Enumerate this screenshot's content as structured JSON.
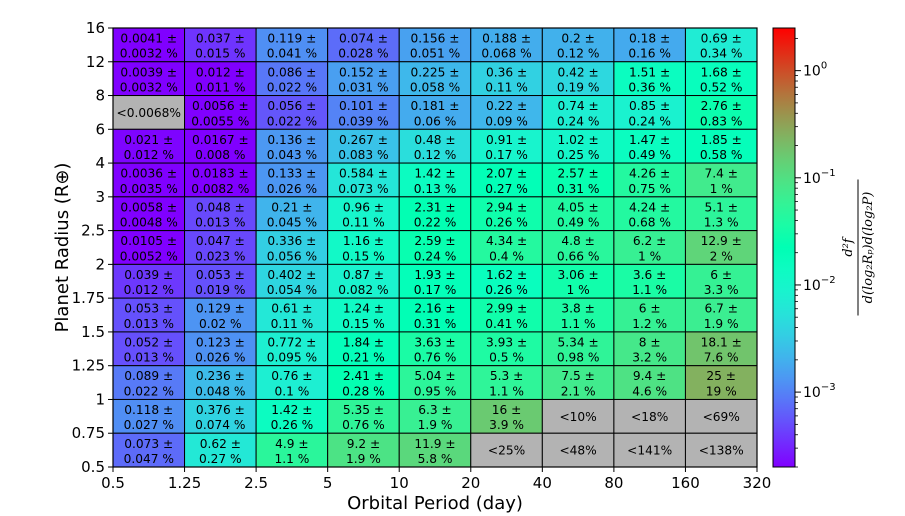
{
  "chart_data": {
    "type": "heatmap",
    "xlabel": "Orbital Period (day)",
    "ylabel": "Planet Radius (R⊕)",
    "x_ticks": [
      "0.5",
      "1.25",
      "2.5",
      "5",
      "10",
      "20",
      "40",
      "80",
      "160",
      "320"
    ],
    "y_ticks": [
      "0.5",
      "0.75",
      "1",
      "1.25",
      "1.5",
      "1.75",
      "2",
      "2.5",
      "3",
      "4",
      "6",
      "8",
      "12",
      "16"
    ],
    "colorbar": {
      "scale": "log",
      "range": [
        0.0002,
        2.5
      ],
      "ticks": [
        {
          "label": "10",
          "exp": "0",
          "value": 1
        },
        {
          "label": "10",
          "exp": "−1",
          "value": 0.1
        },
        {
          "label": "10",
          "exp": "−2",
          "value": 0.01
        },
        {
          "label": "10",
          "exp": "−3",
          "value": 0.001
        }
      ],
      "label": "d²f / d(log₂Rₚ)d(log₂P)",
      "label_num": "d²f",
      "label_den": "d(log₂Rₚ)d(log₂P)",
      "colormap": "rainbow"
    },
    "rows": [
      {
        "y": "12-16",
        "cells": [
          {
            "v": 0.0041,
            "t1": "0.0041 ±",
            "t2": "0.0032 %"
          },
          {
            "v": 0.037,
            "t1": "0.037 ±",
            "t2": "0.015 %"
          },
          {
            "v": 0.119,
            "t1": "0.119 ±",
            "t2": "0.041 %"
          },
          {
            "v": 0.074,
            "t1": "0.074 ±",
            "t2": "0.028 %"
          },
          {
            "v": 0.156,
            "t1": "0.156 ±",
            "t2": "0.051 %"
          },
          {
            "v": 0.188,
            "t1": "0.188 ±",
            "t2": "0.068 %"
          },
          {
            "v": 0.2,
            "t1": "0.2 ±",
            "t2": "0.12 %"
          },
          {
            "v": 0.18,
            "t1": "0.18 ±",
            "t2": "0.16 %"
          },
          {
            "v": 0.69,
            "t1": "0.69 ±",
            "t2": "0.34 %"
          }
        ]
      },
      {
        "y": "8-12",
        "cells": [
          {
            "v": 0.0039,
            "t1": "0.0039 ±",
            "t2": "0.0032 %"
          },
          {
            "v": 0.012,
            "t1": "0.012 ±",
            "t2": "0.011 %"
          },
          {
            "v": 0.086,
            "t1": "0.086 ±",
            "t2": "0.022 %"
          },
          {
            "v": 0.152,
            "t1": "0.152 ±",
            "t2": "0.031 %"
          },
          {
            "v": 0.225,
            "t1": "0.225 ±",
            "t2": "0.058 %"
          },
          {
            "v": 0.36,
            "t1": "0.36 ±",
            "t2": "0.11 %"
          },
          {
            "v": 0.42,
            "t1": "0.42 ±",
            "t2": "0.19 %"
          },
          {
            "v": 1.51,
            "t1": "1.51 ±",
            "t2": "0.36 %"
          },
          {
            "v": 1.68,
            "t1": "1.68 ±",
            "t2": "0.52 %"
          }
        ]
      },
      {
        "y": "6-8",
        "cells": [
          {
            "v": null,
            "t1": "<0.0068%",
            "t2": ""
          },
          {
            "v": 0.0056,
            "t1": "0.0056 ±",
            "t2": "0.0055 %"
          },
          {
            "v": 0.056,
            "t1": "0.056 ±",
            "t2": "0.022 %"
          },
          {
            "v": 0.101,
            "t1": "0.101 ±",
            "t2": "0.039 %"
          },
          {
            "v": 0.181,
            "t1": "0.181 ±",
            "t2": "0.06 %"
          },
          {
            "v": 0.22,
            "t1": "0.22 ±",
            "t2": "0.09 %"
          },
          {
            "v": 0.74,
            "t1": "0.74 ±",
            "t2": "0.24 %"
          },
          {
            "v": 0.85,
            "t1": "0.85 ±",
            "t2": "0.24 %"
          },
          {
            "v": 2.76,
            "t1": "2.76 ±",
            "t2": "0.83 %"
          }
        ]
      },
      {
        "y": "4-6",
        "cells": [
          {
            "v": 0.021,
            "t1": "0.021 ±",
            "t2": "0.012 %"
          },
          {
            "v": 0.0167,
            "t1": "0.0167 ±",
            "t2": "0.008 %"
          },
          {
            "v": 0.136,
            "t1": "0.136 ±",
            "t2": "0.043 %"
          },
          {
            "v": 0.267,
            "t1": "0.267 ±",
            "t2": "0.083 %"
          },
          {
            "v": 0.48,
            "t1": "0.48 ±",
            "t2": "0.12 %"
          },
          {
            "v": 0.91,
            "t1": "0.91 ±",
            "t2": "0.17 %"
          },
          {
            "v": 1.02,
            "t1": "1.02 ±",
            "t2": "0.25 %"
          },
          {
            "v": 1.47,
            "t1": "1.47 ±",
            "t2": "0.49 %"
          },
          {
            "v": 1.85,
            "t1": "1.85 ±",
            "t2": "0.58 %"
          }
        ]
      },
      {
        "y": "3-4",
        "cells": [
          {
            "v": 0.0036,
            "t1": "0.0036 ±",
            "t2": "0.0035 %"
          },
          {
            "v": 0.0183,
            "t1": "0.0183 ±",
            "t2": "0.0082 %"
          },
          {
            "v": 0.133,
            "t1": "0.133 ±",
            "t2": "0.026 %"
          },
          {
            "v": 0.584,
            "t1": "0.584 ±",
            "t2": "0.073 %"
          },
          {
            "v": 1.42,
            "t1": "1.42 ±",
            "t2": "0.13 %"
          },
          {
            "v": 2.07,
            "t1": "2.07 ±",
            "t2": "0.27 %"
          },
          {
            "v": 2.57,
            "t1": "2.57 ±",
            "t2": "0.31 %"
          },
          {
            "v": 4.26,
            "t1": "4.26 ±",
            "t2": "0.75 %"
          },
          {
            "v": 7.4,
            "t1": "7.4 ±",
            "t2": "1 %"
          }
        ]
      },
      {
        "y": "2.5-3",
        "cells": [
          {
            "v": 0.0058,
            "t1": "0.0058 ±",
            "t2": "0.0048 %"
          },
          {
            "v": 0.048,
            "t1": "0.048 ±",
            "t2": "0.013 %"
          },
          {
            "v": 0.21,
            "t1": "0.21 ±",
            "t2": "0.045 %"
          },
          {
            "v": 0.96,
            "t1": "0.96 ±",
            "t2": "0.11 %"
          },
          {
            "v": 2.31,
            "t1": "2.31 ±",
            "t2": "0.22 %"
          },
          {
            "v": 2.94,
            "t1": "2.94 ±",
            "t2": "0.26 %"
          },
          {
            "v": 4.05,
            "t1": "4.05 ±",
            "t2": "0.49 %"
          },
          {
            "v": 4.24,
            "t1": "4.24 ±",
            "t2": "0.68 %"
          },
          {
            "v": 5.1,
            "t1": "5.1 ±",
            "t2": "1.3 %"
          }
        ]
      },
      {
        "y": "2-2.5",
        "cells": [
          {
            "v": 0.0105,
            "t1": "0.0105 ±",
            "t2": "0.0052 %"
          },
          {
            "v": 0.047,
            "t1": "0.047 ±",
            "t2": "0.023 %"
          },
          {
            "v": 0.336,
            "t1": "0.336 ±",
            "t2": "0.056 %"
          },
          {
            "v": 1.16,
            "t1": "1.16 ±",
            "t2": "0.15 %"
          },
          {
            "v": 2.59,
            "t1": "2.59 ±",
            "t2": "0.24 %"
          },
          {
            "v": 4.34,
            "t1": "4.34 ±",
            "t2": "0.4 %"
          },
          {
            "v": 4.8,
            "t1": "4.8 ±",
            "t2": "0.66 %"
          },
          {
            "v": 6.2,
            "t1": "6.2 ±",
            "t2": "1 %"
          },
          {
            "v": 12.9,
            "t1": "12.9 ±",
            "t2": "2 %"
          }
        ]
      },
      {
        "y": "1.75-2",
        "cells": [
          {
            "v": 0.039,
            "t1": "0.039 ±",
            "t2": "0.012 %"
          },
          {
            "v": 0.053,
            "t1": "0.053 ±",
            "t2": "0.019 %"
          },
          {
            "v": 0.402,
            "t1": "0.402 ±",
            "t2": "0.054 %"
          },
          {
            "v": 0.87,
            "t1": "0.87 ±",
            "t2": "0.082 %"
          },
          {
            "v": 1.93,
            "t1": "1.93 ±",
            "t2": "0.17 %"
          },
          {
            "v": 1.62,
            "t1": "1.62 ±",
            "t2": "0.26 %"
          },
          {
            "v": 3.06,
            "t1": "3.06 ±",
            "t2": "1 %"
          },
          {
            "v": 3.6,
            "t1": "3.6 ±",
            "t2": "1.1 %"
          },
          {
            "v": 6,
            "t1": "6 ±",
            "t2": "3.3 %"
          }
        ]
      },
      {
        "y": "1.5-1.75",
        "cells": [
          {
            "v": 0.053,
            "t1": "0.053 ±",
            "t2": "0.013 %"
          },
          {
            "v": 0.129,
            "t1": "0.129 ±",
            "t2": "0.02 %"
          },
          {
            "v": 0.61,
            "t1": "0.61 ±",
            "t2": "0.11 %"
          },
          {
            "v": 1.24,
            "t1": "1.24 ±",
            "t2": "0.15 %"
          },
          {
            "v": 2.16,
            "t1": "2.16 ±",
            "t2": "0.31 %"
          },
          {
            "v": 2.99,
            "t1": "2.99 ±",
            "t2": "0.41 %"
          },
          {
            "v": 3.8,
            "t1": "3.8 ±",
            "t2": "1.1 %"
          },
          {
            "v": 6,
            "t1": "6 ±",
            "t2": "1.2 %"
          },
          {
            "v": 6.7,
            "t1": "6.7 ±",
            "t2": "1.9 %"
          }
        ]
      },
      {
        "y": "1.25-1.5",
        "cells": [
          {
            "v": 0.052,
            "t1": "0.052 ±",
            "t2": "0.013 %"
          },
          {
            "v": 0.123,
            "t1": "0.123 ±",
            "t2": "0.026 %"
          },
          {
            "v": 0.772,
            "t1": "0.772 ±",
            "t2": "0.095 %"
          },
          {
            "v": 1.84,
            "t1": "1.84 ±",
            "t2": "0.21 %"
          },
          {
            "v": 3.63,
            "t1": "3.63 ±",
            "t2": "0.76 %"
          },
          {
            "v": 3.93,
            "t1": "3.93 ±",
            "t2": "0.5 %"
          },
          {
            "v": 5.34,
            "t1": "5.34 ±",
            "t2": "0.98 %"
          },
          {
            "v": 8,
            "t1": "8 ±",
            "t2": "3.2 %"
          },
          {
            "v": 18.1,
            "t1": "18.1 ±",
            "t2": "7.6 %"
          }
        ]
      },
      {
        "y": "1-1.25",
        "cells": [
          {
            "v": 0.089,
            "t1": "0.089 ±",
            "t2": "0.022 %"
          },
          {
            "v": 0.236,
            "t1": "0.236 ±",
            "t2": "0.048 %"
          },
          {
            "v": 0.76,
            "t1": "0.76 ±",
            "t2": "0.1 %"
          },
          {
            "v": 2.41,
            "t1": "2.41 ±",
            "t2": "0.28 %"
          },
          {
            "v": 5.04,
            "t1": "5.04 ±",
            "t2": "0.95 %"
          },
          {
            "v": 5.3,
            "t1": "5.3 ±",
            "t2": "1.1 %"
          },
          {
            "v": 7.5,
            "t1": "7.5 ±",
            "t2": "2.1 %"
          },
          {
            "v": 9.4,
            "t1": "9.4 ±",
            "t2": "4.6 %"
          },
          {
            "v": 25,
            "t1": "25 ±",
            "t2": "19 %"
          }
        ]
      },
      {
        "y": "0.75-1",
        "cells": [
          {
            "v": 0.118,
            "t1": "0.118 ±",
            "t2": "0.027 %"
          },
          {
            "v": 0.376,
            "t1": "0.376 ±",
            "t2": "0.074 %"
          },
          {
            "v": 1.42,
            "t1": "1.42 ±",
            "t2": "0.26 %"
          },
          {
            "v": 5.35,
            "t1": "5.35 ±",
            "t2": "0.76 %"
          },
          {
            "v": 6.3,
            "t1": "6.3 ±",
            "t2": "1.9 %"
          },
          {
            "v": 16,
            "t1": "16 ±",
            "t2": "3.9 %"
          },
          {
            "v": null,
            "t1": "<10%",
            "t2": ""
          },
          {
            "v": null,
            "t1": "<18%",
            "t2": ""
          },
          {
            "v": null,
            "t1": "<69%",
            "t2": ""
          }
        ]
      },
      {
        "y": "0.5-0.75",
        "cells": [
          {
            "v": 0.073,
            "t1": "0.073 ±",
            "t2": "0.047 %"
          },
          {
            "v": 0.62,
            "t1": "0.62 ±",
            "t2": "0.27 %"
          },
          {
            "v": 4.9,
            "t1": "4.9 ±",
            "t2": "1.1 %"
          },
          {
            "v": 9.2,
            "t1": "9.2 ±",
            "t2": "1.9 %"
          },
          {
            "v": 11.9,
            "t1": "11.9 ±",
            "t2": "5.8 %"
          },
          {
            "v": null,
            "t1": "<25%",
            "t2": ""
          },
          {
            "v": null,
            "t1": "<48%",
            "t2": ""
          },
          {
            "v": null,
            "t1": "<141%",
            "t2": ""
          },
          {
            "v": null,
            "t1": "<138%",
            "t2": ""
          }
        ]
      }
    ]
  }
}
